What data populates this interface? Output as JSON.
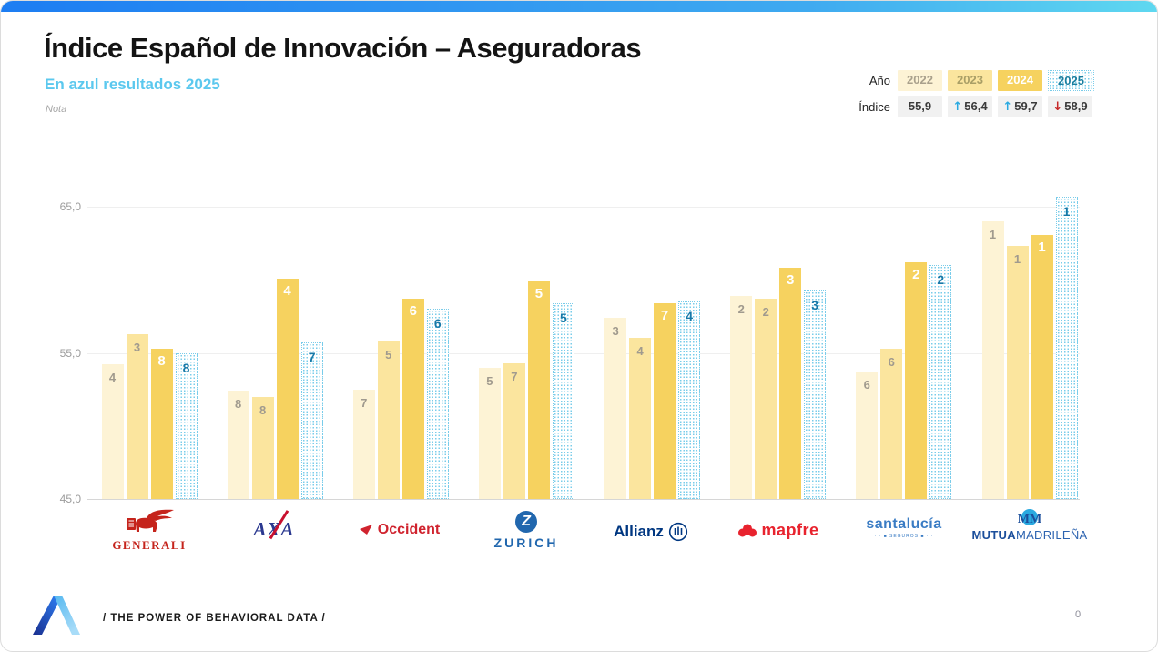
{
  "slide": {
    "title": "Índice Español de Innovación – Aseguradoras",
    "subtitle": "En azul resultados 2025",
    "note": "Nota",
    "footer_tagline": "/  THE POWER OF BEHAVIORAL DATA  /",
    "page_number": "0"
  },
  "colors": {
    "accent_subtitle": "#5BC8EE",
    "top_bar_left": "#1D7DF2",
    "top_bar_right": "#5FD8F0",
    "bar_2022": "#FDF3D5",
    "bar_2023": "#FBE59E",
    "bar_2024": "#F6D25F",
    "bar_2025_dots": "#79CCEA",
    "rank_2025_text": "#1779A8",
    "trend_up": "#29A9E1",
    "trend_down": "#C62828"
  },
  "summary_table": {
    "year_row_label": "Año",
    "index_row_label": "Índice",
    "columns": [
      {
        "year": "2022",
        "index": "55,9",
        "trend": ""
      },
      {
        "year": "2023",
        "index": "56,4",
        "trend": "up"
      },
      {
        "year": "2024",
        "index": "59,7",
        "trend": "up"
      },
      {
        "year": "2025",
        "index": "58,9",
        "trend": "down"
      }
    ]
  },
  "chart_data": {
    "type": "bar",
    "title": "Índice Español de Innovación – Aseguradoras",
    "categories": [
      "Generali",
      "AXA",
      "Occident",
      "Zurich",
      "Allianz",
      "Mapfre",
      "Santalucía",
      "Mutua Madrileña"
    ],
    "series": [
      {
        "name": "2022",
        "color": "#FDF3D5",
        "values": [
          54.2,
          52.4,
          52.5,
          54.0,
          57.4,
          58.9,
          53.7,
          64.0
        ],
        "ranks": [
          4,
          8,
          7,
          5,
          3,
          2,
          6,
          1
        ]
      },
      {
        "name": "2023",
        "color": "#FBE59E",
        "values": [
          56.3,
          52.0,
          55.8,
          54.3,
          56.0,
          58.7,
          55.3,
          62.3
        ],
        "ranks": [
          3,
          8,
          5,
          7,
          4,
          2,
          6,
          1
        ]
      },
      {
        "name": "2024",
        "color": "#F6D25F",
        "values": [
          55.3,
          60.1,
          58.7,
          59.9,
          58.4,
          60.8,
          61.2,
          63.1
        ],
        "ranks": [
          8,
          4,
          6,
          5,
          7,
          3,
          2,
          1
        ]
      },
      {
        "name": "2025",
        "color": "dotted-blue-pattern",
        "values": [
          55.0,
          55.7,
          58.0,
          58.4,
          58.5,
          59.3,
          61.0,
          65.7
        ],
        "ranks": [
          8,
          7,
          6,
          5,
          4,
          3,
          2,
          1
        ]
      }
    ],
    "ylim": [
      45,
      65
    ],
    "yticks": [
      "65,0",
      "55,0",
      "45,0"
    ],
    "grid": true,
    "legend_position": "top-right",
    "bar_labels": "ranking position shown inside each bar"
  },
  "brands": [
    {
      "label": "GENERALI"
    },
    {
      "label": "AXA"
    },
    {
      "label": "Occident"
    },
    {
      "monogram": "Z",
      "label": "ZURICH"
    },
    {
      "label": "Allianz"
    },
    {
      "label": "mapfre"
    },
    {
      "label": "santalucía",
      "sub": "· · ■ SEGUROS ■ · ·"
    },
    {
      "monogram": "MM",
      "label_bold": "MUTUA",
      "label_light": "MADRILEÑA"
    }
  ]
}
